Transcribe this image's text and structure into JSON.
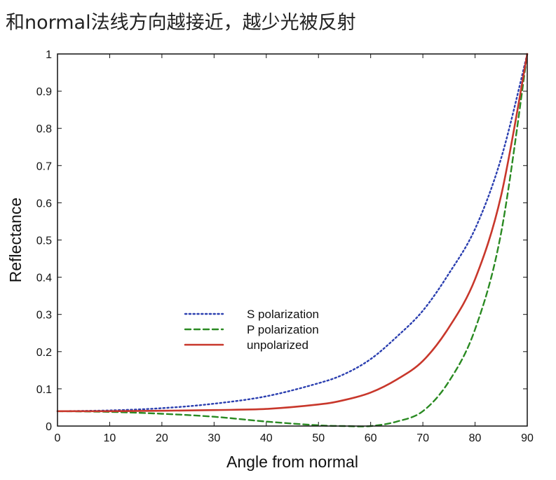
{
  "heading": "和normal法线方向越接近，越少光被反射",
  "chart_data": {
    "type": "line",
    "xlabel": "Angle from normal",
    "ylabel": "Reflectance",
    "xlim": [
      0,
      90
    ],
    "ylim": [
      0,
      1
    ],
    "xticks": [
      "0",
      "10",
      "20",
      "30",
      "40",
      "50",
      "60",
      "70",
      "80",
      "90"
    ],
    "yticks": [
      "0",
      "0.1",
      "0.2",
      "0.3",
      "0.4",
      "0.5",
      "0.6",
      "0.7",
      "0.8",
      "0.9",
      "1"
    ],
    "grid": false,
    "legend_position": "center-left",
    "x": [
      0,
      10,
      20,
      30,
      40,
      50,
      55,
      60,
      65,
      70,
      75,
      80,
      85,
      90
    ],
    "series": [
      {
        "name": "S polarization",
        "color": "#2b3fb0",
        "style": "dotted",
        "values": [
          0.04,
          0.042,
          0.048,
          0.06,
          0.08,
          0.115,
          0.14,
          0.18,
          0.24,
          0.31,
          0.41,
          0.53,
          0.72,
          1.0
        ]
      },
      {
        "name": "P polarization",
        "color": "#2a8a22",
        "style": "dashed",
        "values": [
          0.04,
          0.038,
          0.033,
          0.025,
          0.012,
          0.002,
          0.0,
          0.0,
          0.012,
          0.04,
          0.12,
          0.26,
          0.52,
          1.0
        ]
      },
      {
        "name": "unpolarized",
        "color": "#c8372b",
        "style": "solid",
        "values": [
          0.04,
          0.04,
          0.041,
          0.043,
          0.046,
          0.058,
          0.07,
          0.09,
          0.125,
          0.175,
          0.265,
          0.395,
          0.62,
          1.0
        ]
      }
    ]
  }
}
